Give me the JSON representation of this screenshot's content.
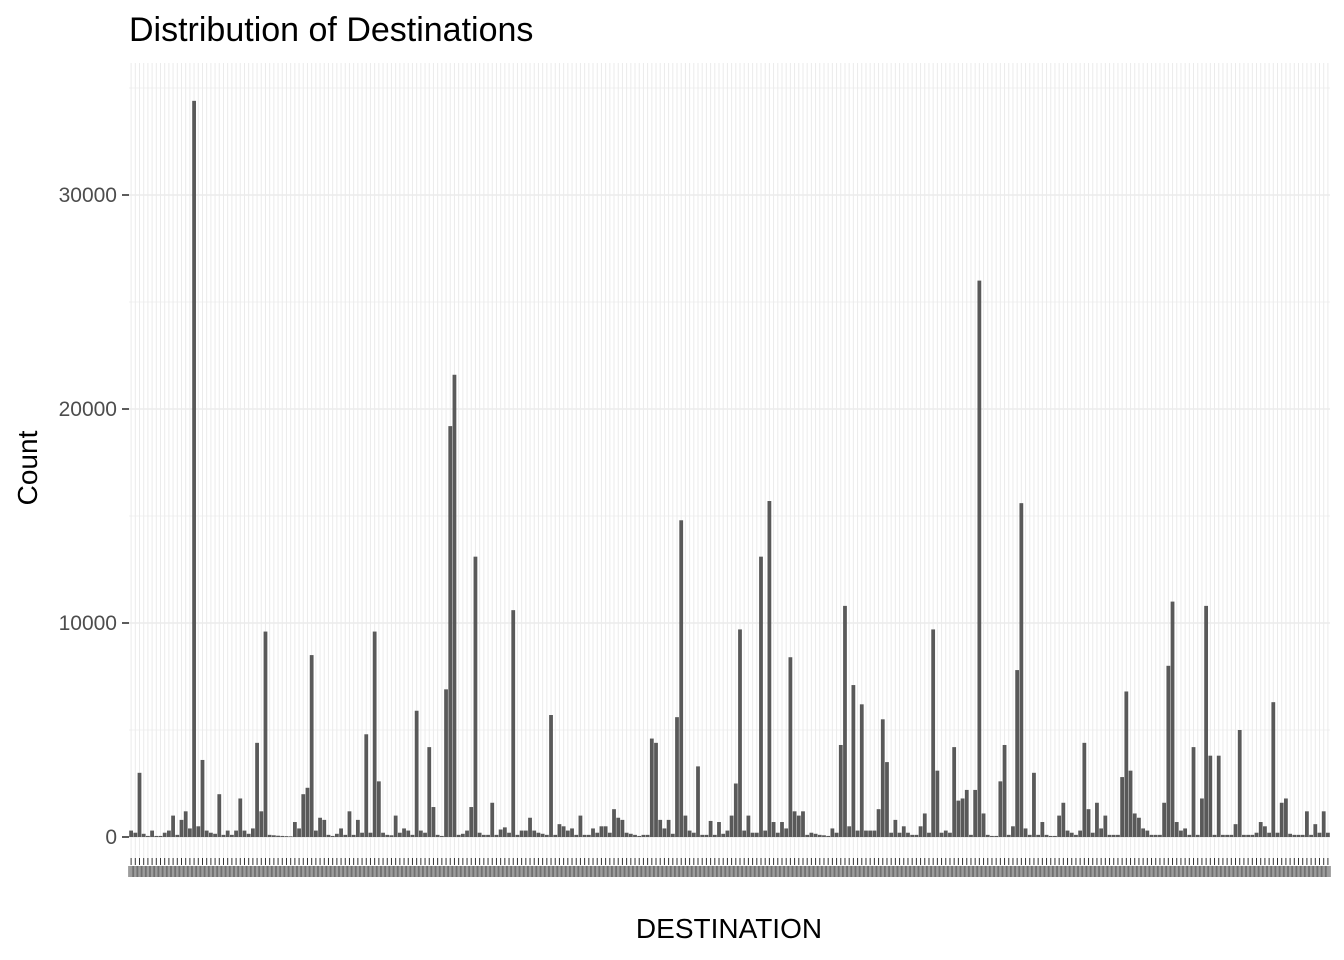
{
  "chart_data": {
    "type": "bar",
    "title": "Distribution of Destinations",
    "xlabel": "DESTINATION",
    "ylabel": "Count",
    "ylim": [
      0,
      36000
    ],
    "yticks": [
      0,
      10000,
      20000,
      30000
    ],
    "ytick_labels": [
      "0",
      "10000",
      "20000",
      "30000"
    ],
    "x_tick_labels_legible": false,
    "bar_color": "#595959",
    "panel_background": "#ffffff",
    "grid_color": "#ebebeb",
    "grid": true,
    "legend": "none",
    "values": [
      300,
      200,
      3000,
      150,
      50,
      300,
      50,
      50,
      200,
      300,
      1000,
      100,
      800,
      1200,
      400,
      34400,
      500,
      3600,
      300,
      200,
      150,
      2000,
      100,
      300,
      100,
      300,
      1800,
      300,
      150,
      400,
      4400,
      1200,
      9600,
      100,
      80,
      60,
      50,
      40,
      30,
      700,
      400,
      2000,
      2300,
      8500,
      300,
      900,
      800,
      100,
      50,
      150,
      400,
      100,
      1200,
      100,
      800,
      200,
      4800,
      200,
      9600,
      2600,
      200,
      100,
      80,
      1000,
      200,
      400,
      300,
      100,
      5900,
      300,
      200,
      4200,
      1400,
      100,
      50,
      6900,
      19200,
      21600,
      100,
      150,
      300,
      1400,
      13100,
      200,
      100,
      100,
      1600,
      100,
      350,
      450,
      200,
      10600,
      100,
      300,
      300,
      900,
      300,
      200,
      150,
      100,
      5700,
      100,
      600,
      500,
      300,
      400,
      100,
      1000,
      100,
      100,
      400,
      200,
      500,
      500,
      200,
      1300,
      900,
      800,
      200,
      150,
      100,
      50,
      100,
      100,
      4600,
      4400,
      800,
      400,
      800,
      150,
      5600,
      14800,
      1000,
      300,
      200,
      3300,
      100,
      100,
      750,
      100,
      700,
      150,
      300,
      1000,
      2500,
      9700,
      300,
      1000,
      200,
      200,
      13100,
      300,
      15700,
      700,
      200,
      700,
      400,
      8400,
      1200,
      1000,
      1200,
      100,
      200,
      150,
      100,
      80,
      50,
      400,
      200,
      4300,
      10800,
      500,
      7100,
      300,
      6200,
      300,
      300,
      300,
      1300,
      5500,
      3500,
      200,
      800,
      200,
      500,
      200,
      100,
      100,
      500,
      1100,
      200,
      9700,
      3100,
      200,
      300,
      200,
      4200,
      1700,
      1800,
      2200,
      100,
      2200,
      26000,
      1100,
      100,
      50,
      50,
      2600,
      4300,
      100,
      500,
      7800,
      15600,
      400,
      100,
      3000,
      100,
      700,
      100,
      50,
      50,
      1000,
      1600,
      300,
      200,
      100,
      300,
      4400,
      1300,
      200,
      1600,
      400,
      1000,
      100,
      100,
      100,
      2800,
      6800,
      3100,
      1100,
      900,
      400,
      300,
      100,
      100,
      100,
      1600,
      8000,
      11000,
      700,
      300,
      400,
      100,
      4200,
      100,
      1800,
      10800,
      3800,
      100,
      3800,
      100,
      100,
      100,
      600,
      5000,
      100,
      100,
      100,
      200,
      700,
      500,
      200,
      6300,
      200,
      1600,
      1800,
      150,
      100,
      100,
      100,
      1200,
      100,
      600,
      200,
      1200,
      200
    ]
  }
}
